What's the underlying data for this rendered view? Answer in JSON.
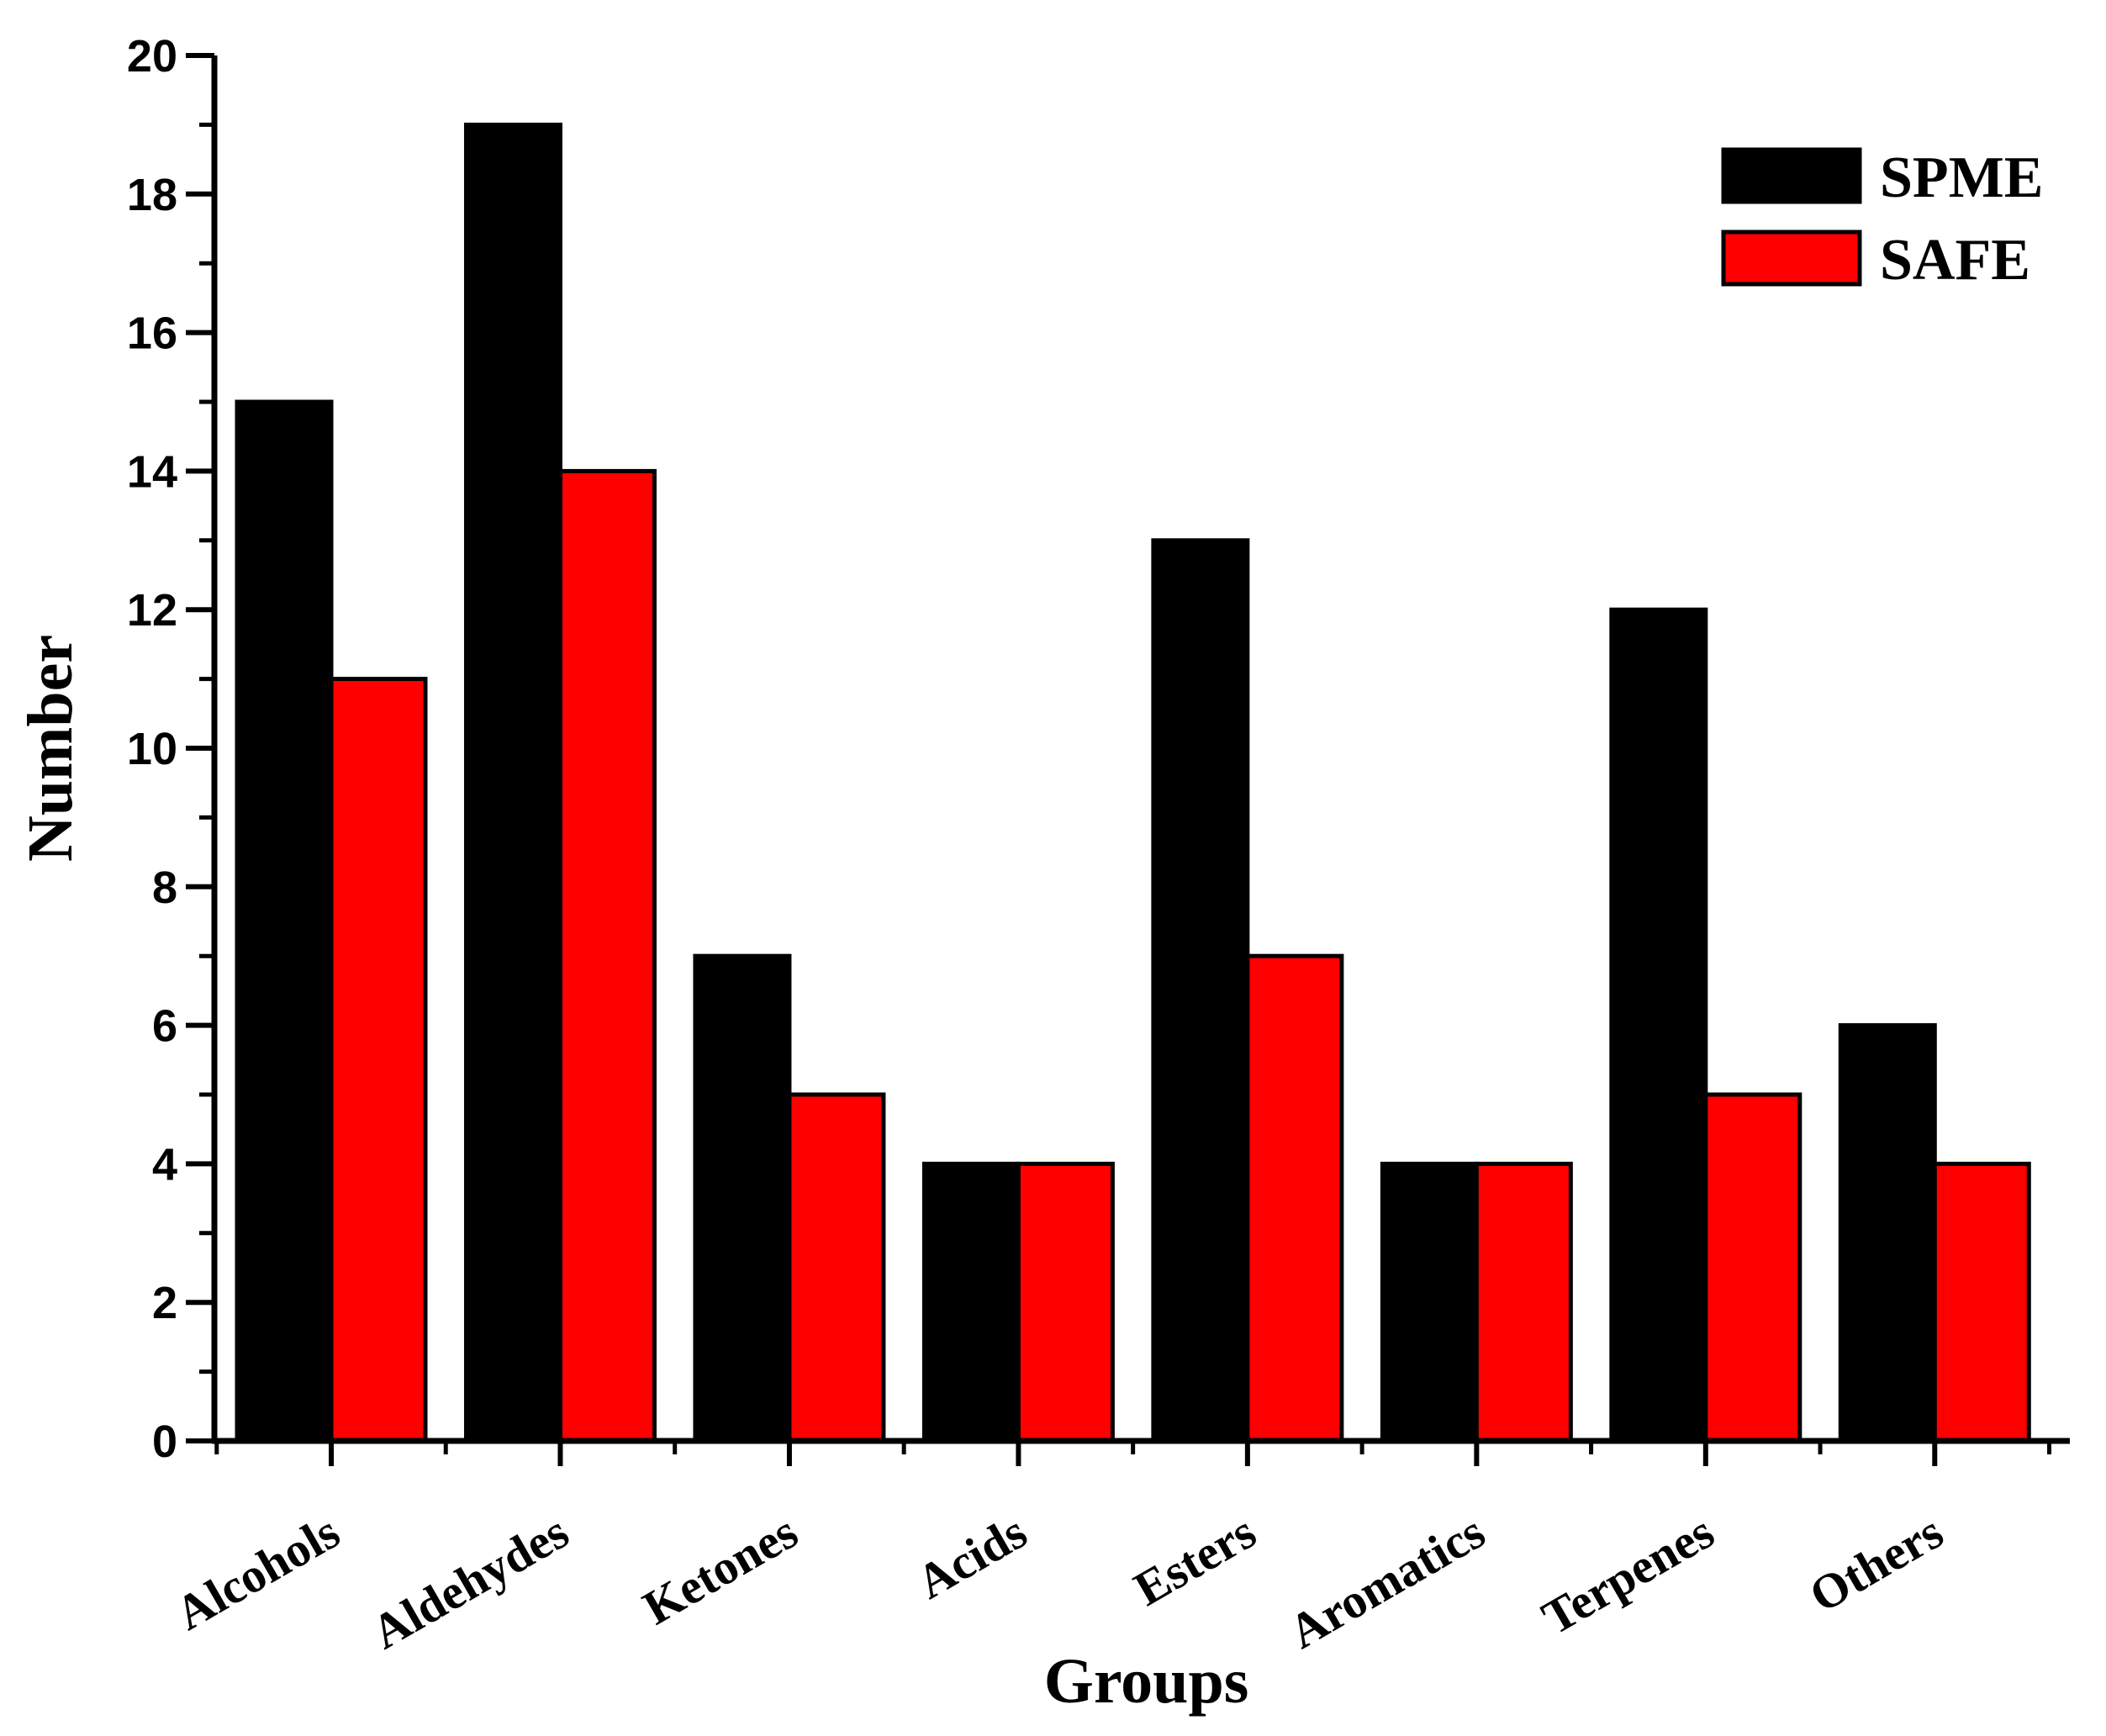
{
  "chart_data": {
    "type": "bar",
    "title": "",
    "xlabel": "Groups",
    "ylabel": "Number",
    "ylim": [
      0,
      20
    ],
    "y_ticks": [
      0,
      2,
      4,
      6,
      8,
      10,
      12,
      14,
      16,
      18,
      20
    ],
    "grid": false,
    "legend_position": "top-right",
    "categories": [
      "Alcohols",
      "Aldehydes",
      "Ketones",
      "Acids",
      "Esters",
      "Aromatics",
      "Terpenes",
      "Others"
    ],
    "series": [
      {
        "name": "SPME",
        "color": "#000000",
        "values": [
          15,
          19,
          7,
          4,
          13,
          4,
          12,
          6
        ]
      },
      {
        "name": "SAFE",
        "color": "#ff0000",
        "values": [
          11,
          14,
          5,
          4,
          7,
          4,
          5,
          4
        ]
      }
    ]
  }
}
